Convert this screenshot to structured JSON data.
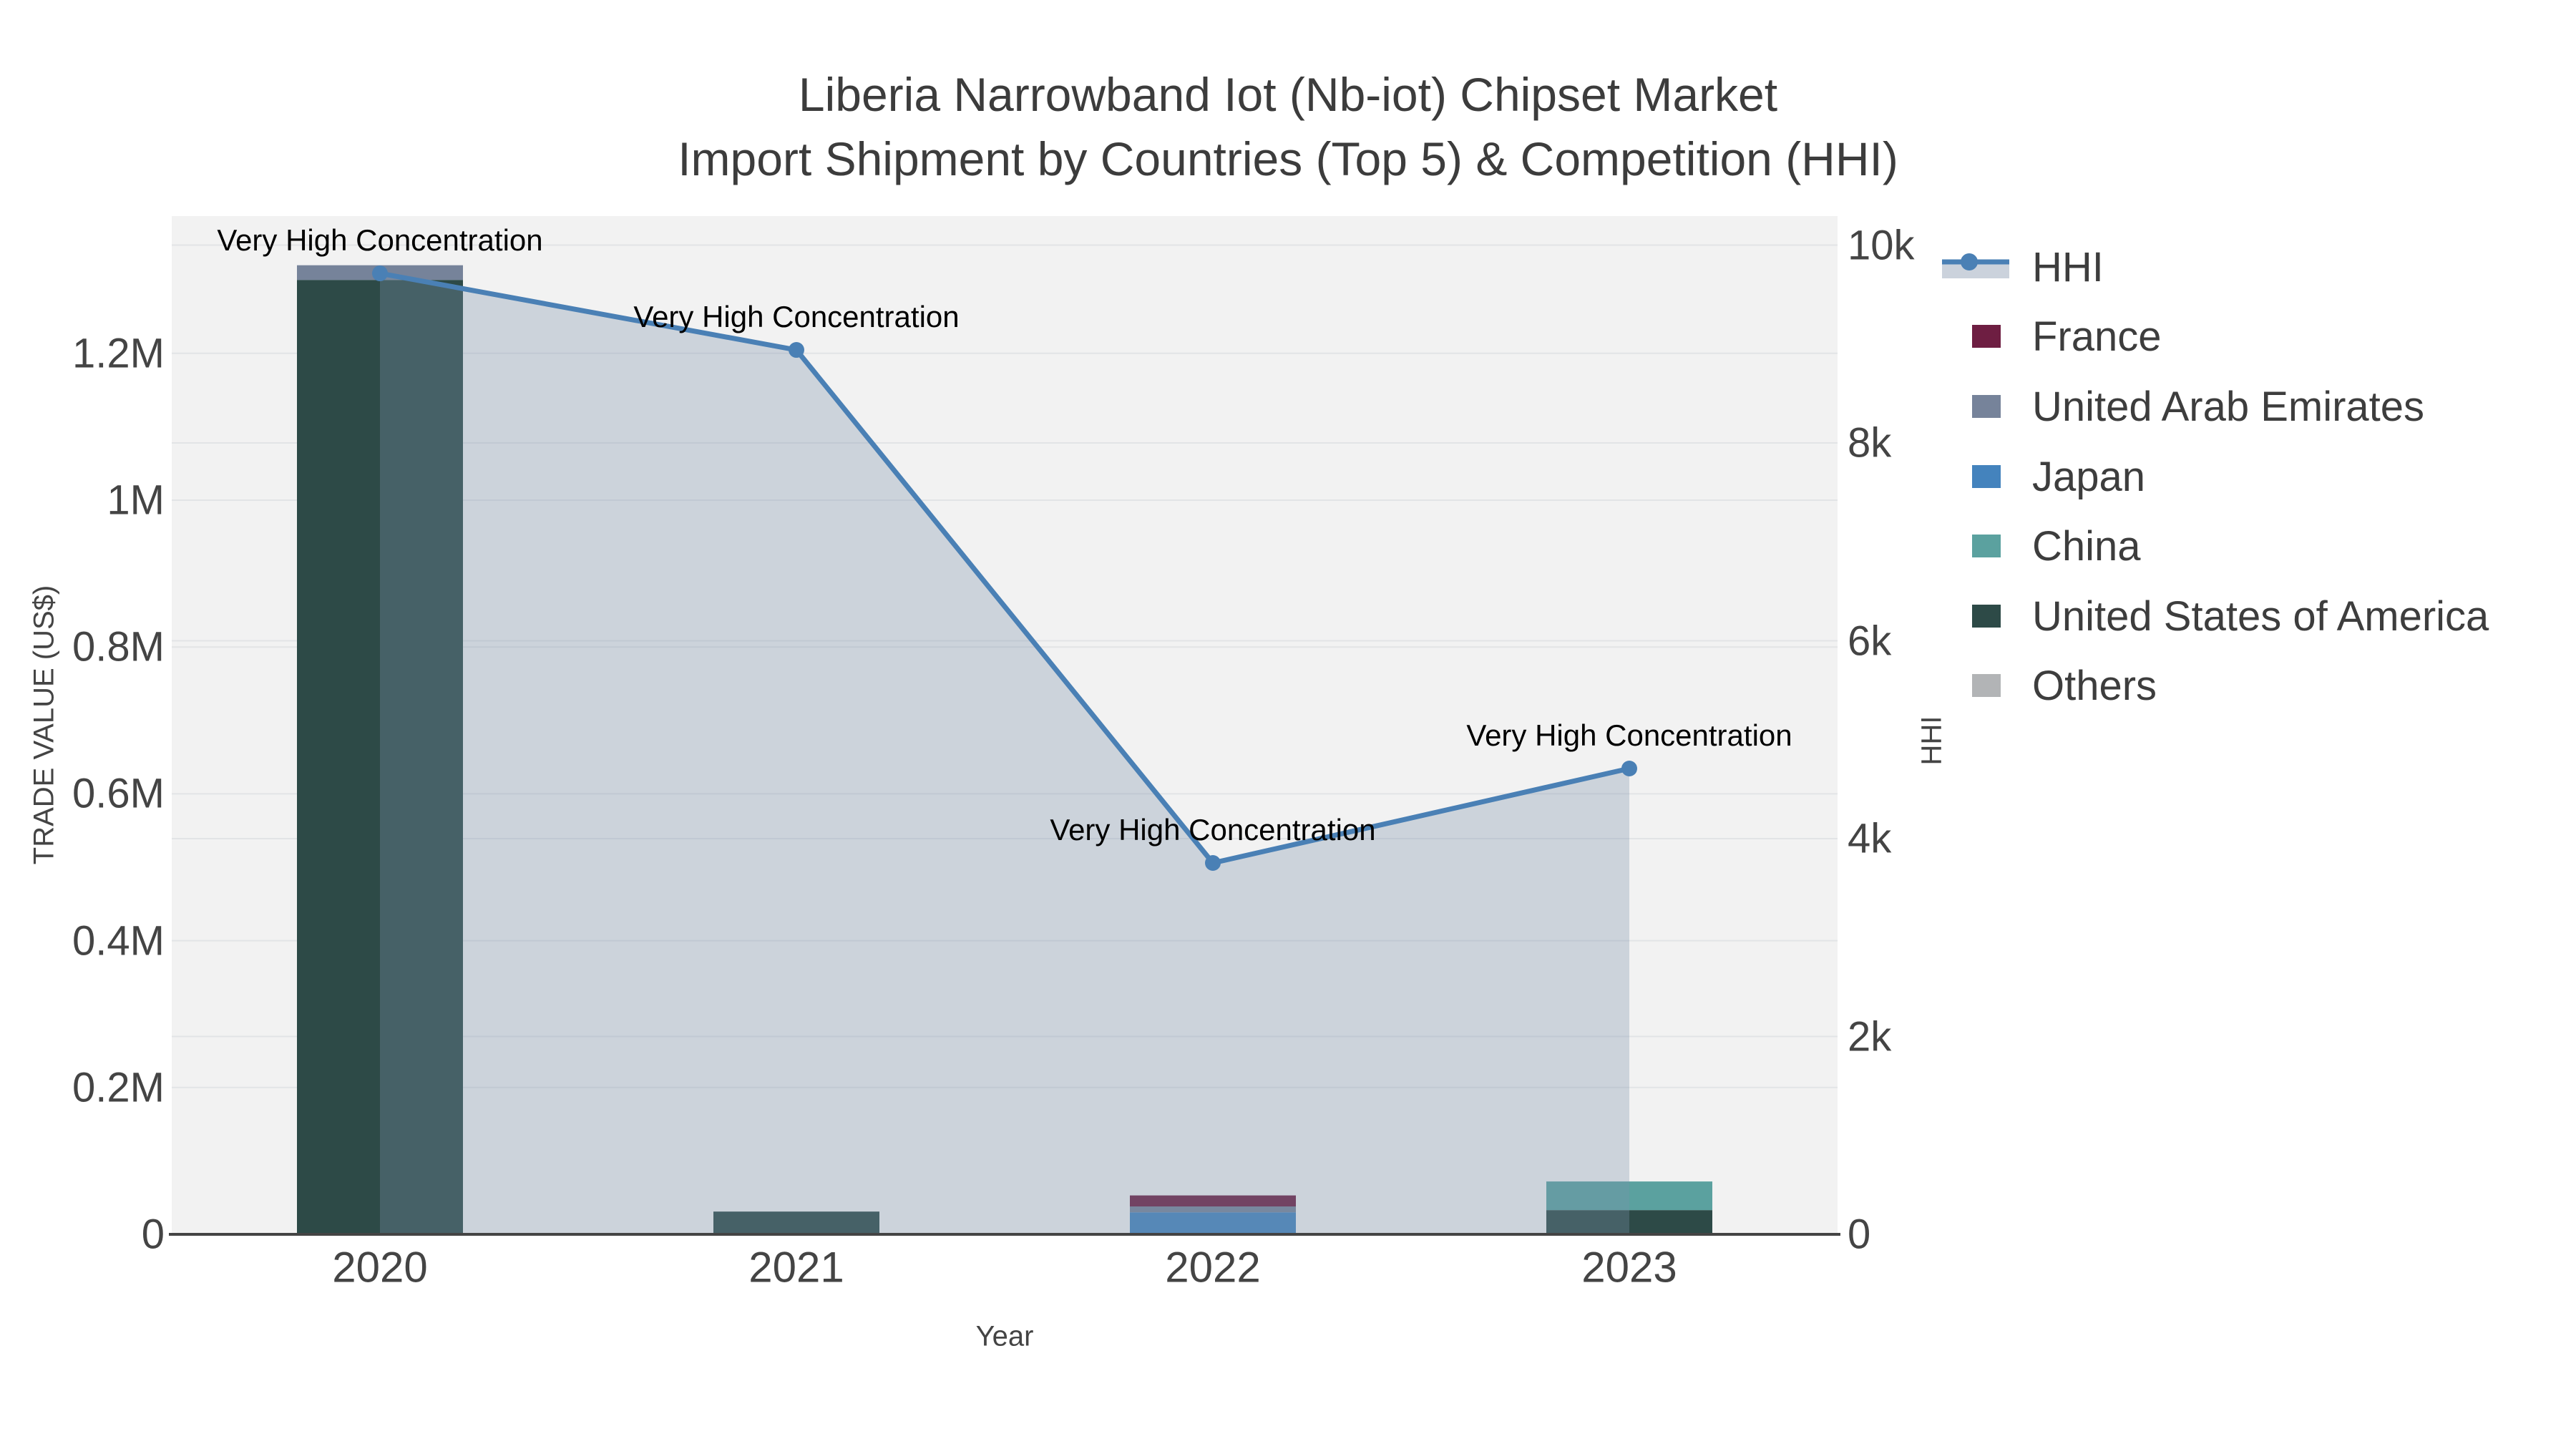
{
  "title": {
    "line1": "Liberia Narrowband Iot (Nb-iot) Chipset Market",
    "line2": "Import Shipment by Countries (Top 5) & Competition (HHI)"
  },
  "axes": {
    "x": {
      "title": "Year",
      "ticks": [
        "2020",
        "2021",
        "2022",
        "2023"
      ]
    },
    "left": {
      "title": "TRADE VALUE (US$)",
      "ticks": [
        {
          "label": "0",
          "value": 0
        },
        {
          "label": "0.2M",
          "value": 200000
        },
        {
          "label": "0.4M",
          "value": 400000
        },
        {
          "label": "0.6M",
          "value": 600000
        },
        {
          "label": "0.8M",
          "value": 800000
        },
        {
          "label": "1M",
          "value": 1000000
        },
        {
          "label": "1.2M",
          "value": 1200000
        }
      ]
    },
    "right": {
      "title": "HHI",
      "ticks": [
        {
          "label": "0",
          "value": 0
        },
        {
          "label": "2k",
          "value": 2000
        },
        {
          "label": "4k",
          "value": 4000
        },
        {
          "label": "6k",
          "value": 6000
        },
        {
          "label": "8k",
          "value": 8000
        },
        {
          "label": "10k",
          "value": 10000
        }
      ]
    }
  },
  "legend": [
    {
      "label": "HHI",
      "type": "line",
      "color": "#4a80b5",
      "band_color": "#cbd2dc"
    },
    {
      "label": "France",
      "type": "swatch",
      "color": "#6e1e42"
    },
    {
      "label": "United Arab Emirates",
      "type": "swatch",
      "color": "#76839a"
    },
    {
      "label": "Japan",
      "type": "swatch",
      "color": "#4483bd"
    },
    {
      "label": "China",
      "type": "swatch",
      "color": "#5ba19f"
    },
    {
      "label": "United States of America",
      "type": "swatch",
      "color": "#2d4a47"
    },
    {
      "label": "Others",
      "type": "swatch",
      "color": "#b2b4b6"
    }
  ],
  "chart_data": {
    "type": "combo",
    "subtypes": [
      "stacked-bar",
      "line-area"
    ],
    "title": "Liberia Narrowband Iot (Nb-iot) Chipset Market Import Shipment by Countries (Top 5) & Competition (HHI)",
    "categories": [
      "2020",
      "2021",
      "2022",
      "2023"
    ],
    "xlabel": "Year",
    "bar_axis": {
      "label": "TRADE VALUE (US$)",
      "unit": "US$",
      "range": [
        0,
        1388000
      ]
    },
    "line_axis": {
      "label": "HHI",
      "range": [
        0,
        10290
      ]
    },
    "stack_order_bottom_to_top": [
      "United States of America",
      "Japan",
      "China",
      "United Arab Emirates",
      "France",
      "Others"
    ],
    "series": [
      {
        "name": "United States of America",
        "color": "#2d4a47",
        "values": [
          1300000,
          31000,
          0,
          33000
        ]
      },
      {
        "name": "Japan",
        "color": "#4483bd",
        "values": [
          0,
          0,
          30000,
          0
        ]
      },
      {
        "name": "China",
        "color": "#5ba19f",
        "values": [
          0,
          0,
          0,
          39000
        ]
      },
      {
        "name": "United Arab Emirates",
        "color": "#76839a",
        "values": [
          20000,
          0,
          8000,
          0
        ]
      },
      {
        "name": "France",
        "color": "#6e1e42",
        "values": [
          0,
          0,
          15000,
          0
        ]
      },
      {
        "name": "Others",
        "color": "#b2b4b6",
        "values": [
          0,
          0,
          0,
          0
        ]
      }
    ],
    "line_series": {
      "name": "HHI",
      "axis": "right",
      "color": "#4a80b5",
      "area_fill": "rgba(125,145,172,0.32)",
      "values": [
        9714,
        8940,
        3754,
        4709
      ]
    },
    "annotations": [
      {
        "text": "Very High Concentration",
        "category": "2020"
      },
      {
        "text": "Very High Concentration",
        "category": "2021"
      },
      {
        "text": "Very High Concentration",
        "category": "2022"
      },
      {
        "text": "Very High Concentration",
        "category": "2023"
      }
    ],
    "grid": true,
    "legend_position": "right"
  },
  "colors": {
    "background": "#ffffff",
    "plot_background": "#f2f2f2",
    "grid": "#e2e4e6",
    "axis_line": "#444444",
    "tick_text": "#444444",
    "title_text": "#3c3c3c",
    "annotation_text": "#000000",
    "hhi_line": "#4a80b5",
    "hhi_fill": "rgba(125,145,172,0.32)"
  }
}
